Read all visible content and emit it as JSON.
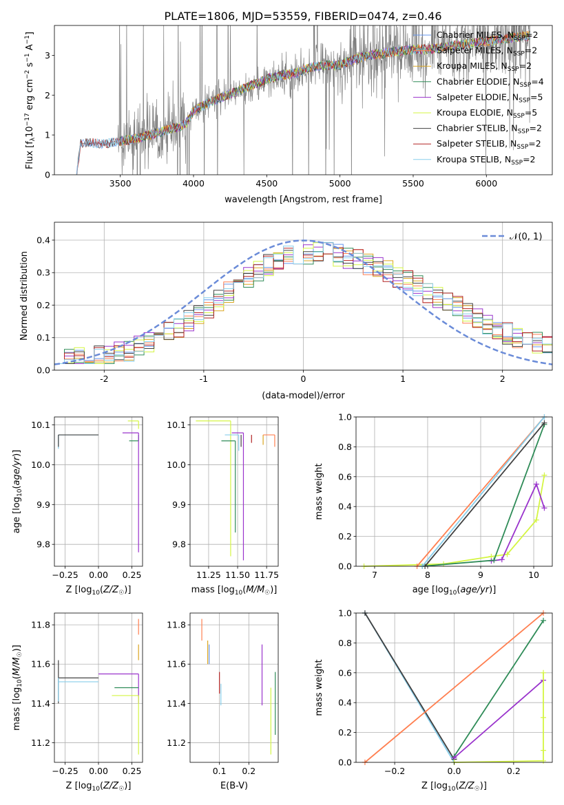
{
  "figure_title": "PLATE=1806, MJD=53559, FIBERID=0474, z=0.46",
  "colors": {
    "Chabrier MILES": "#6495ed",
    "Salpeter MILES": "#ff7f50",
    "Kroupa MILES": "#daa520",
    "Chabrier ELODIE": "#2e8b57",
    "Salpeter ELODIE": "#9932cc",
    "Kroupa ELODIE": "#d4f542",
    "Chabrier STELIB": "#404040",
    "Salpeter STELIB": "#b22222",
    "Kroupa STELIB": "#87ceeb",
    "data": "#808080",
    "normal": "#6a8bd8"
  },
  "chart_data": [
    {
      "id": "spectrum",
      "type": "line",
      "xlabel": "wavelength [Angstrom, rest frame]",
      "ylabel": "Flux [f_λ10^-17 erg cm^-2 s^-1 A^-1]",
      "xlim": [
        3050,
        6450
      ],
      "ylim": [
        0,
        3.75
      ],
      "xticks": [
        3500,
        4000,
        4500,
        5000,
        5500,
        6000
      ],
      "yticks": [
        0,
        1,
        2,
        3
      ],
      "grid": false,
      "legend_position": "top-right",
      "legend": [
        {
          "label": "Chabrier MILES, N",
          "sub": "SSP",
          "suffix": "=2"
        },
        {
          "label": "Salpeter MILES, N",
          "sub": "SSP",
          "suffix": "=2"
        },
        {
          "label": "Kroupa MILES, N",
          "sub": "SSP",
          "suffix": "=2"
        },
        {
          "label": "Chabrier ELODIE, N",
          "sub": "SSP",
          "suffix": "=4"
        },
        {
          "label": "Salpeter ELODIE, N",
          "sub": "SSP",
          "suffix": "=5"
        },
        {
          "label": "Kroupa ELODIE, N",
          "sub": "SSP",
          "suffix": "=5"
        },
        {
          "label": "Chabrier STELIB, N",
          "sub": "SSP",
          "suffix": "=2"
        },
        {
          "label": "Salpeter STELIB, N",
          "sub": "SSP",
          "suffix": "=2"
        },
        {
          "label": "Kroupa STELIB, N",
          "sub": "SSP",
          "suffix": "=2"
        }
      ],
      "model_continuum": {
        "x": [
          3200,
          3230,
          3300,
          3400,
          3500,
          3600,
          3700,
          3800,
          3900,
          3950,
          4000,
          4100,
          4200,
          4300,
          4400,
          4500,
          4600,
          4700,
          4800,
          4900,
          5000,
          5100,
          5200,
          5300,
          5400,
          5500,
          5600,
          5700,
          5800,
          5900,
          6000,
          6100,
          6200,
          6300
        ],
        "y": [
          0.0,
          0.78,
          0.8,
          0.78,
          0.85,
          0.9,
          1.0,
          1.1,
          1.2,
          1.3,
          1.6,
          1.8,
          1.95,
          2.1,
          2.25,
          2.4,
          2.5,
          2.55,
          2.7,
          2.75,
          2.75,
          2.9,
          3.0,
          3.05,
          3.1,
          3.15,
          3.15,
          3.2,
          3.25,
          3.3,
          3.35,
          3.4,
          3.45,
          3.5
        ]
      }
    },
    {
      "id": "residuals",
      "type": "line",
      "xlabel": "(data-model)/error",
      "ylabel": "Normed distribution",
      "xlim": [
        -2.5,
        2.5
      ],
      "ylim": [
        0,
        0.455
      ],
      "xticks": [
        -2,
        -1,
        0,
        1,
        2
      ],
      "yticks": [
        0.0,
        0.1,
        0.2,
        0.3,
        0.4
      ],
      "grid": true,
      "legend_position": "top-right",
      "series": [
        {
          "name": "𝒩(0, 1)",
          "type": "line",
          "style": "dashed",
          "function": "standard normal pdf"
        }
      ],
      "histogram_envelope": {
        "x": [
          -2.5,
          -2.25,
          -2.0,
          -1.75,
          -1.5,
          -1.25,
          -1.0,
          -0.75,
          -0.5,
          -0.25,
          0.0,
          0.25,
          0.5,
          0.75,
          1.0,
          1.25,
          1.5,
          1.75,
          2.0,
          2.25,
          2.5
        ],
        "y": [
          0.03,
          0.04,
          0.045,
          0.06,
          0.09,
          0.13,
          0.18,
          0.24,
          0.3,
          0.34,
          0.36,
          0.36,
          0.34,
          0.32,
          0.28,
          0.24,
          0.2,
          0.16,
          0.12,
          0.09,
          0.07
        ]
      }
    },
    {
      "id": "age-vs-Z",
      "type": "scatter",
      "xlabel": "Z [log10(Z/Z☉)]",
      "ylabel": "age [log10(age/yr)]",
      "xlim": [
        -0.33,
        0.33
      ],
      "ylim": [
        9.745,
        10.12
      ],
      "xticks": [
        -0.25,
        0.0,
        0.25
      ],
      "xticklabels": [
        "−0.25",
        "0.00",
        "0.25"
      ],
      "yticks": [
        9.8,
        9.9,
        10.0,
        10.1
      ],
      "grid": true,
      "points": [
        {
          "model": "Kroupa STELIB",
          "x": -0.3,
          "y": 10.075,
          "xerr": [
            0.0,
            0.3
          ],
          "yerr": [
            0.035,
            0.0
          ]
        },
        {
          "model": "Chabrier STELIB",
          "x": -0.3,
          "y": 10.075,
          "xerr": [
            0.0,
            0.3
          ],
          "yerr": [
            0.03,
            0.0
          ]
        },
        {
          "model": "Chabrier ELODIE",
          "x": 0.3,
          "y": 10.06,
          "xerr": [
            0.07,
            0.0
          ],
          "yerr": [
            0.0,
            0.015
          ]
        },
        {
          "model": "Kroupa ELODIE",
          "x": 0.3,
          "y": 10.11,
          "xerr": [
            0.08,
            0.0
          ],
          "yerr": [
            0.02,
            0.0
          ]
        },
        {
          "model": "Salpeter ELODIE",
          "x": 0.3,
          "y": 10.08,
          "xerr": [
            0.12,
            0.0
          ],
          "yerr": [
            0.3,
            0.0
          ]
        },
        {
          "model": "Salpeter MILES",
          "x": 0.3,
          "y": 10.075,
          "xerr": [
            0.0,
            0.0
          ],
          "yerr": [
            0.0,
            0.0
          ]
        }
      ]
    },
    {
      "id": "age-vs-mass",
      "type": "scatter",
      "xlabel": "mass [log10(M/M☉)]",
      "xlim": [
        11.09,
        11.85
      ],
      "ylim": [
        9.745,
        10.12
      ],
      "xticks": [
        11.25,
        11.5,
        11.75
      ],
      "xticklabels": [
        "11.25",
        "11.50",
        "11.75"
      ],
      "yticks": [
        9.8,
        9.9,
        10.0,
        10.1
      ],
      "grid": true,
      "points": [
        {
          "model": "Kroupa ELODIE",
          "x": 11.44,
          "y": 10.11,
          "xerr": [
            0.3,
            0.0
          ],
          "yerr": [
            0.34,
            0.0
          ]
        },
        {
          "model": "Chabrier ELODIE",
          "x": 11.48,
          "y": 10.06,
          "xerr": [
            0.12,
            0.0
          ],
          "yerr": [
            0.23,
            0.0
          ]
        },
        {
          "model": "Salpeter ELODIE",
          "x": 11.55,
          "y": 10.08,
          "xerr": [
            0.1,
            0.0
          ],
          "yerr": [
            0.32,
            0.0
          ]
        },
        {
          "model": "Kroupa STELIB",
          "x": 11.51,
          "y": 10.075,
          "xerr": [
            0.12,
            0.0
          ],
          "yerr": [
            0.04,
            0.0
          ]
        },
        {
          "model": "Chabrier STELIB",
          "x": 11.53,
          "y": 10.075,
          "xerr": [
            0.0,
            0.0
          ],
          "yerr": [
            0.03,
            0.0
          ]
        },
        {
          "model": "Salpeter STELIB",
          "x": 11.62,
          "y": 10.075,
          "xerr": [
            0.0,
            0.0
          ],
          "yerr": [
            0.02,
            0.0
          ]
        },
        {
          "model": "Kroupa MILES",
          "x": 11.72,
          "y": 10.075,
          "xerr": [
            0.0,
            0.0
          ],
          "yerr": [
            0.025,
            0.0
          ]
        },
        {
          "model": "Salpeter MILES",
          "x": 11.82,
          "y": 10.075,
          "xerr": [
            0.1,
            0.0
          ],
          "yerr": [
            0.03,
            0.0
          ]
        }
      ]
    },
    {
      "id": "massweight-vs-age",
      "type": "line",
      "xlabel": "age [log10(age/yr)]",
      "ylabel": "mass weight",
      "xlim": [
        6.65,
        10.35
      ],
      "ylim": [
        0,
        1
      ],
      "xticks": [
        7,
        8,
        9,
        10
      ],
      "yticks": [
        0.0,
        0.2,
        0.4,
        0.6,
        0.8,
        1.0
      ],
      "grid": true,
      "series": [
        {
          "model": "Kroupa ELODIE",
          "x": [
            6.8,
            8.3,
            9.2,
            9.5,
            10.05,
            10.2
          ],
          "y": [
            0.0,
            0.015,
            0.065,
            0.08,
            0.31,
            0.61
          ]
        },
        {
          "model": "Salpeter ELODIE",
          "x": [
            9.2,
            9.4,
            10.05,
            10.2
          ],
          "y": [
            0.035,
            0.045,
            0.55,
            0.39
          ]
        },
        {
          "model": "Chabrier ELODIE",
          "x": [
            7.9,
            9.25,
            10.2
          ],
          "y": [
            0.0,
            0.04,
            0.95
          ]
        },
        {
          "model": "Salpeter MILES",
          "x": [
            7.8,
            10.2
          ],
          "y": [
            0.0,
            1.0
          ]
        },
        {
          "model": "Chabrier STELIB",
          "x": [
            7.95,
            10.2
          ],
          "y": [
            0.0,
            0.96
          ]
        },
        {
          "model": "Kroupa STELIB",
          "x": [
            7.9,
            10.2
          ],
          "y": [
            0.0,
            1.0
          ]
        }
      ]
    },
    {
      "id": "mass-vs-Z",
      "type": "scatter",
      "xlabel": "Z [log10(Z/Z☉)]",
      "ylabel": "mass [log10(M/M☉)]",
      "xlim": [
        -0.33,
        0.33
      ],
      "ylim": [
        11.1,
        11.86
      ],
      "xticks": [
        -0.25,
        0.0,
        0.25
      ],
      "xticklabels": [
        "−0.25",
        "0.00",
        "0.25"
      ],
      "yticks": [
        11.2,
        11.4,
        11.6,
        11.8
      ],
      "grid": true,
      "points": [
        {
          "model": "Chabrier STELIB",
          "x": -0.3,
          "y": 11.53,
          "xerr": [
            0.0,
            0.3
          ],
          "yerr": [
            0.13,
            0.09
          ]
        },
        {
          "model": "Kroupa STELIB",
          "x": -0.3,
          "y": 11.51,
          "xerr": [
            0.0,
            0.3
          ],
          "yerr": [
            0.1,
            0.02
          ]
        },
        {
          "model": "Salpeter ELODIE",
          "x": 0.3,
          "y": 11.55,
          "xerr": [
            0.3,
            0.0
          ],
          "yerr": [
            0.15,
            0.0
          ]
        },
        {
          "model": "Chabrier ELODIE",
          "x": 0.3,
          "y": 11.48,
          "xerr": [
            0.18,
            0.0
          ],
          "yerr": [
            0.0,
            0.0
          ]
        },
        {
          "model": "Kroupa ELODIE",
          "x": 0.3,
          "y": 11.44,
          "xerr": [
            0.2,
            0.0
          ],
          "yerr": [
            0.3,
            0.0
          ]
        },
        {
          "model": "Salpeter MILES",
          "x": 0.3,
          "y": 11.8,
          "xerr": [
            0.0,
            0.0
          ],
          "yerr": [
            0.05,
            0.03
          ]
        },
        {
          "model": "Kroupa MILES",
          "x": 0.3,
          "y": 11.7,
          "xerr": [
            0.0,
            0.0
          ],
          "yerr": [
            0.08,
            0.0
          ]
        }
      ]
    },
    {
      "id": "mass-vs-ebv",
      "type": "scatter",
      "xlabel": "E(B-V)",
      "xlim": [
        0.0,
        0.3
      ],
      "ylim": [
        11.1,
        11.86
      ],
      "xticks": [
        0.1,
        0.2
      ],
      "xticklabels": [
        "0.1",
        "0.2"
      ],
      "yticks": [
        11.2,
        11.4,
        11.6,
        11.8
      ],
      "grid": true,
      "segments": [
        {
          "model": "Salpeter MILES",
          "x": 0.04,
          "y1": 11.72,
          "y2": 11.83
        },
        {
          "model": "Kroupa MILES",
          "x": 0.06,
          "y1": 11.6,
          "y2": 11.72
        },
        {
          "model": "Chabrier MILES",
          "x": 0.065,
          "y1": 11.6,
          "y2": 11.7
        },
        {
          "model": "Salpeter STELIB",
          "x": 0.1,
          "y1": 11.45,
          "y2": 11.56
        },
        {
          "model": "Kroupa STELIB",
          "x": 0.105,
          "y1": 11.39,
          "y2": 11.5
        },
        {
          "model": "Salpeter ELODIE",
          "x": 0.245,
          "y1": 11.39,
          "y2": 11.7
        },
        {
          "model": "Kroupa ELODIE",
          "x": 0.275,
          "y1": 11.14,
          "y2": 11.48
        },
        {
          "model": "Chabrier ELODIE",
          "x": 0.29,
          "y1": 11.24,
          "y2": 11.56
        }
      ]
    },
    {
      "id": "massweight-vs-Z",
      "type": "line",
      "xlabel": "Z [log10(Z/Z☉)]",
      "ylabel": "mass weight",
      "xlim": [
        -0.33,
        0.33
      ],
      "ylim": [
        0,
        1
      ],
      "xticks": [
        -0.2,
        0.0,
        0.2
      ],
      "xticklabels": [
        "−0.2",
        "0.0",
        "0.2"
      ],
      "yticks": [
        0.0,
        0.2,
        0.4,
        0.6,
        0.8,
        1.0
      ],
      "grid": true,
      "series": [
        {
          "model": "Kroupa STELIB",
          "x": [
            -0.3,
            0.0
          ],
          "y": [
            1.0,
            0.0
          ]
        },
        {
          "model": "Chabrier STELIB",
          "x": [
            -0.3,
            0.0
          ],
          "y": [
            1.0,
            0.02
          ]
        },
        {
          "model": "Salpeter MILES",
          "x": [
            -0.3,
            0.3
          ],
          "y": [
            0.0,
            1.0
          ]
        },
        {
          "model": "Chabrier ELODIE",
          "x": [
            0.0,
            0.3
          ],
          "y": [
            0.04,
            0.95
          ]
        },
        {
          "model": "Salpeter ELODIE",
          "x": [
            0.0,
            0.3
          ],
          "y": [
            0.03,
            0.55
          ]
        },
        {
          "model": "Kroupa ELODIE",
          "x": [
            0.0,
            0.3,
            0.3,
            0.3,
            0.3
          ],
          "y": [
            0.0,
            0.01,
            0.3,
            0.6,
            0.08
          ]
        }
      ]
    }
  ]
}
